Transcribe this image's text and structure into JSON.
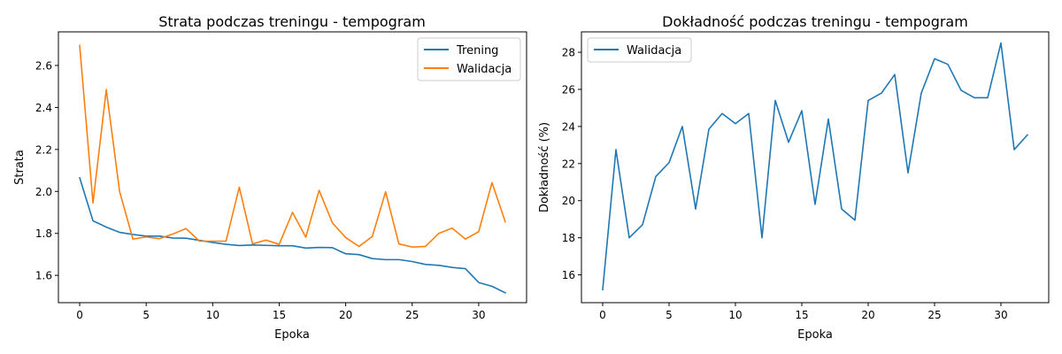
{
  "chart_data": [
    {
      "type": "line",
      "title": "Strata podczas treningu - tempogram",
      "xlabel": "Epoka",
      "ylabel": "Strata",
      "xlim": [
        -1.6,
        33.6
      ],
      "ylim": [
        1.47,
        2.76
      ],
      "xticks": [
        0,
        5,
        10,
        15,
        20,
        25,
        30
      ],
      "yticks": [
        1.6,
        1.8,
        2.0,
        2.2,
        2.4,
        2.6
      ],
      "ytick_labels": [
        "1.6",
        "1.8",
        "2.0",
        "2.2",
        "2.4",
        "2.6"
      ],
      "grid": false,
      "legend_position": "top-right",
      "x": [
        0,
        1,
        2,
        3,
        4,
        5,
        6,
        7,
        8,
        9,
        10,
        11,
        12,
        13,
        14,
        15,
        16,
        17,
        18,
        19,
        20,
        21,
        22,
        23,
        24,
        25,
        26,
        27,
        28,
        29,
        30,
        31,
        32
      ],
      "series": [
        {
          "name": "Trening",
          "color": "#1f77b4",
          "values": [
            2.065,
            1.86,
            1.83,
            1.805,
            1.795,
            1.787,
            1.787,
            1.778,
            1.777,
            1.767,
            1.757,
            1.748,
            1.742,
            1.745,
            1.743,
            1.741,
            1.741,
            1.73,
            1.733,
            1.732,
            1.703,
            1.699,
            1.68,
            1.675,
            1.675,
            1.666,
            1.652,
            1.648,
            1.638,
            1.632,
            1.566,
            1.548,
            1.517
          ]
        },
        {
          "name": "Walidacja",
          "color": "#ff7f0e",
          "values": [
            2.695,
            1.945,
            2.485,
            2.0,
            1.773,
            1.783,
            1.775,
            1.797,
            1.823,
            1.763,
            1.763,
            1.763,
            2.02,
            1.75,
            1.768,
            1.748,
            1.9,
            1.782,
            2.005,
            1.85,
            1.78,
            1.738,
            1.785,
            1.998,
            1.75,
            1.735,
            1.738,
            1.8,
            1.825,
            1.773,
            1.808,
            2.042,
            1.855
          ]
        }
      ]
    },
    {
      "type": "line",
      "title": "Dokładność podczas treningu - tempogram",
      "xlabel": "Epoka",
      "ylabel": "Dokładność (%)",
      "xlim": [
        -1.6,
        33.6
      ],
      "ylim": [
        14.5,
        29.1
      ],
      "xticks": [
        0,
        5,
        10,
        15,
        20,
        25,
        30
      ],
      "yticks": [
        16,
        18,
        20,
        22,
        24,
        26,
        28
      ],
      "ytick_labels": [
        "16",
        "18",
        "20",
        "22",
        "24",
        "26",
        "28"
      ],
      "grid": false,
      "legend_position": "top-left",
      "x": [
        0,
        1,
        2,
        3,
        4,
        5,
        6,
        7,
        8,
        9,
        10,
        11,
        12,
        13,
        14,
        15,
        16,
        17,
        18,
        19,
        20,
        21,
        22,
        23,
        24,
        25,
        26,
        27,
        28,
        29,
        30,
        31,
        32
      ],
      "series": [
        {
          "name": "Walidacja",
          "color": "#1f77b4",
          "values": [
            15.2,
            22.75,
            18.0,
            18.7,
            21.3,
            22.05,
            24.0,
            19.55,
            23.85,
            24.7,
            24.15,
            24.7,
            18.0,
            25.4,
            23.15,
            24.85,
            19.8,
            24.4,
            19.55,
            18.95,
            25.4,
            25.8,
            26.8,
            21.5,
            25.8,
            27.65,
            27.35,
            25.95,
            25.55,
            25.55,
            28.5,
            22.75,
            23.55
          ]
        }
      ]
    }
  ]
}
